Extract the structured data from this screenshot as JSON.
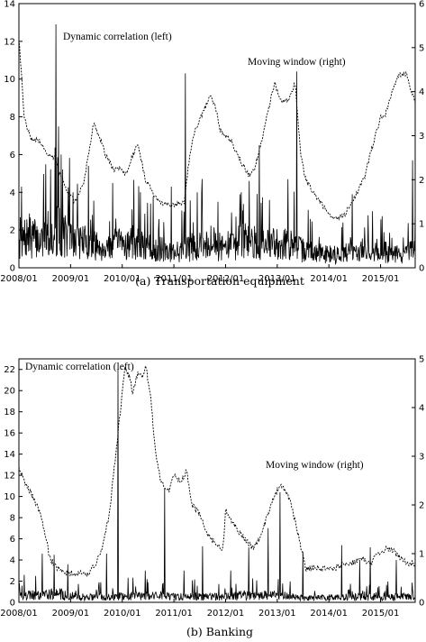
{
  "chart_data": [
    {
      "type": "line",
      "caption": "(a) Transportation equipment",
      "x_ticks": [
        "2008/01",
        "2009/01",
        "2010/01",
        "2011/01",
        "2012/01",
        "2013/01",
        "2014/01",
        "2015/01"
      ],
      "x_range": [
        2008.0,
        2015.67
      ],
      "left_axis": {
        "ticks": [
          0,
          2,
          4,
          6,
          8,
          10,
          12,
          14
        ],
        "range": [
          0,
          14
        ]
      },
      "right_axis": {
        "ticks": [
          0,
          1,
          2,
          3,
          4,
          5,
          6
        ],
        "range": [
          0,
          6
        ]
      },
      "annotations": [
        "Dynamic correlation (left)",
        "Moving window (right)"
      ],
      "series": [
        {
          "axis": "left",
          "style": "solid",
          "base": [
            [
              2008.0,
              1.5
            ],
            [
              2008.2,
              2.0
            ],
            [
              2008.4,
              1.7
            ],
            [
              2008.6,
              1.9
            ],
            [
              2008.75,
              2.4
            ],
            [
              2008.9,
              2.0
            ],
            [
              2009.0,
              1.8
            ],
            [
              2009.2,
              1.7
            ],
            [
              2009.4,
              1.4
            ],
            [
              2009.6,
              1.3
            ],
            [
              2009.8,
              1.4
            ],
            [
              2010.0,
              1.5
            ],
            [
              2010.2,
              1.6
            ],
            [
              2010.4,
              1.3
            ],
            [
              2010.6,
              1.2
            ],
            [
              2010.8,
              1.1
            ],
            [
              2011.0,
              1.0
            ],
            [
              2011.2,
              1.1
            ],
            [
              2011.4,
              1.4
            ],
            [
              2011.6,
              1.5
            ],
            [
              2011.8,
              1.3
            ],
            [
              2012.0,
              1.3
            ],
            [
              2012.2,
              1.5
            ],
            [
              2012.4,
              1.7
            ],
            [
              2012.6,
              1.5
            ],
            [
              2012.8,
              1.4
            ],
            [
              2013.0,
              1.6
            ],
            [
              2013.2,
              1.5
            ],
            [
              2013.4,
              1.2
            ],
            [
              2013.6,
              1.0
            ],
            [
              2013.8,
              0.9
            ],
            [
              2014.0,
              0.9
            ],
            [
              2014.2,
              0.8
            ],
            [
              2014.4,
              1.0
            ],
            [
              2014.6,
              1.1
            ],
            [
              2014.8,
              1.0
            ],
            [
              2015.0,
              1.1
            ],
            [
              2015.2,
              0.9
            ],
            [
              2015.4,
              0.8
            ],
            [
              2015.6,
              1.0
            ],
            [
              2015.67,
              1.1
            ]
          ],
          "spikes": [
            [
              2008.72,
              12.9
            ],
            [
              2011.22,
              10.3
            ],
            [
              2013.38,
              10.4
            ],
            [
              2012.65,
              6.5
            ],
            [
              2008.82,
              6.0
            ],
            [
              2009.35,
              5.4
            ],
            [
              2015.62,
              5.7
            ],
            [
              2010.95,
              4.3
            ],
            [
              2008.05,
              4.3
            ],
            [
              2009.05,
              4.0
            ],
            [
              2012.3,
              4.0
            ],
            [
              2014.45,
              3.9
            ],
            [
              2010.55,
              3.4
            ],
            [
              2011.85,
              3.5
            ],
            [
              2012.85,
              3.6
            ]
          ]
        },
        {
          "axis": "right",
          "style": "dotted",
          "points": [
            [
              2008.0,
              5.2
            ],
            [
              2008.05,
              4.4
            ],
            [
              2008.1,
              3.4
            ],
            [
              2008.25,
              2.9
            ],
            [
              2008.4,
              2.9
            ],
            [
              2008.55,
              2.6
            ],
            [
              2008.7,
              2.5
            ],
            [
              2008.8,
              2.1
            ],
            [
              2009.0,
              1.6
            ],
            [
              2009.1,
              1.5
            ],
            [
              2009.25,
              1.9
            ],
            [
              2009.35,
              2.6
            ],
            [
              2009.45,
              3.3
            ],
            [
              2009.55,
              3.0
            ],
            [
              2009.7,
              2.5
            ],
            [
              2009.85,
              2.2
            ],
            [
              2009.95,
              2.3
            ],
            [
              2010.05,
              2.1
            ],
            [
              2010.15,
              2.4
            ],
            [
              2010.3,
              2.8
            ],
            [
              2010.45,
              2.0
            ],
            [
              2010.55,
              1.8
            ],
            [
              2010.7,
              1.5
            ],
            [
              2011.0,
              1.4
            ],
            [
              2011.2,
              1.5
            ],
            [
              2011.3,
              2.5
            ],
            [
              2011.4,
              3.1
            ],
            [
              2011.55,
              3.5
            ],
            [
              2011.7,
              3.9
            ],
            [
              2011.8,
              3.7
            ],
            [
              2011.9,
              3.1
            ],
            [
              2012.1,
              2.9
            ],
            [
              2012.3,
              2.4
            ],
            [
              2012.45,
              2.1
            ],
            [
              2012.55,
              2.2
            ],
            [
              2012.7,
              2.9
            ],
            [
              2012.85,
              3.7
            ],
            [
              2012.95,
              4.2
            ],
            [
              2013.05,
              3.8
            ],
            [
              2013.2,
              3.8
            ],
            [
              2013.35,
              4.2
            ],
            [
              2013.45,
              2.6
            ],
            [
              2013.55,
              2.0
            ],
            [
              2013.75,
              1.6
            ],
            [
              2013.95,
              1.3
            ],
            [
              2014.1,
              1.1
            ],
            [
              2014.3,
              1.2
            ],
            [
              2014.5,
              1.6
            ],
            [
              2014.7,
              2.1
            ],
            [
              2014.85,
              2.8
            ],
            [
              2015.0,
              3.4
            ],
            [
              2015.1,
              3.5
            ],
            [
              2015.2,
              3.9
            ],
            [
              2015.35,
              4.4
            ],
            [
              2015.5,
              4.4
            ],
            [
              2015.6,
              4.0
            ],
            [
              2015.67,
              3.8
            ]
          ]
        }
      ]
    },
    {
      "type": "line",
      "caption": "(b) Banking",
      "x_ticks": [
        "2008/01",
        "2009/01",
        "2010/01",
        "2011/01",
        "2012/01",
        "2013/01",
        "2014/01",
        "2015/01"
      ],
      "x_range": [
        2008.0,
        2015.67
      ],
      "left_axis": {
        "ticks": [
          0,
          2,
          4,
          6,
          8,
          10,
          12,
          14,
          16,
          18,
          20,
          22
        ],
        "range": [
          0,
          23
        ]
      },
      "right_axis": {
        "ticks": [
          0,
          1,
          2,
          3,
          4,
          5
        ],
        "range": [
          0,
          5
        ]
      },
      "annotations": [
        "Dynamic correlation (left)",
        "Moving window (right)"
      ],
      "series": [
        {
          "axis": "left",
          "style": "solid",
          "base": [
            [
              2008.0,
              0.6
            ],
            [
              2008.2,
              0.8
            ],
            [
              2008.4,
              0.9
            ],
            [
              2008.6,
              1.0
            ],
            [
              2008.8,
              0.9
            ],
            [
              2009.0,
              0.7
            ],
            [
              2009.2,
              0.6
            ],
            [
              2009.4,
              0.6
            ],
            [
              2009.6,
              0.6
            ],
            [
              2009.8,
              0.7
            ],
            [
              2010.0,
              0.7
            ],
            [
              2010.2,
              0.8
            ],
            [
              2010.4,
              0.8
            ],
            [
              2010.6,
              0.7
            ],
            [
              2010.8,
              0.7
            ],
            [
              2011.0,
              0.6
            ],
            [
              2011.2,
              0.6
            ],
            [
              2011.4,
              0.7
            ],
            [
              2011.6,
              0.6
            ],
            [
              2011.8,
              0.6
            ],
            [
              2012.0,
              0.6
            ],
            [
              2012.2,
              0.7
            ],
            [
              2012.4,
              0.8
            ],
            [
              2012.6,
              0.7
            ],
            [
              2012.8,
              0.8
            ],
            [
              2013.0,
              0.8
            ],
            [
              2013.2,
              0.7
            ],
            [
              2013.4,
              0.5
            ],
            [
              2013.6,
              0.5
            ],
            [
              2013.8,
              0.5
            ],
            [
              2014.0,
              0.5
            ],
            [
              2014.2,
              0.5
            ],
            [
              2014.4,
              0.6
            ],
            [
              2014.6,
              0.6
            ],
            [
              2014.8,
              0.6
            ],
            [
              2015.0,
              0.7
            ],
            [
              2015.2,
              0.6
            ],
            [
              2015.4,
              0.6
            ],
            [
              2015.67,
              0.7
            ]
          ],
          "spikes": [
            [
              2009.92,
              22.0
            ],
            [
              2010.82,
              10.8
            ],
            [
              2013.05,
              10.4
            ],
            [
              2012.82,
              7.0
            ],
            [
              2011.55,
              5.3
            ],
            [
              2012.45,
              5.2
            ],
            [
              2008.68,
              4.5
            ],
            [
              2008.45,
              4.6
            ],
            [
              2014.8,
              5.2
            ],
            [
              2009.7,
              4.6
            ],
            [
              2014.25,
              5.4
            ],
            [
              2008.95,
              3.6
            ],
            [
              2013.5,
              4.8
            ],
            [
              2015.3,
              4.0
            ],
            [
              2010.45,
              3.0
            ],
            [
              2012.1,
              3.0
            ],
            [
              2014.6,
              4.0
            ],
            [
              2008.1,
              2.6
            ],
            [
              2011.2,
              3.0
            ]
          ]
        },
        {
          "axis": "right",
          "style": "dotted",
          "points": [
            [
              2008.0,
              2.8
            ],
            [
              2008.1,
              2.5
            ],
            [
              2008.3,
              2.1
            ],
            [
              2008.45,
              1.7
            ],
            [
              2008.6,
              0.9
            ],
            [
              2008.75,
              0.7
            ],
            [
              2008.95,
              0.6
            ],
            [
              2009.2,
              0.6
            ],
            [
              2009.35,
              0.6
            ],
            [
              2009.5,
              0.8
            ],
            [
              2009.6,
              1.1
            ],
            [
              2009.75,
              1.8
            ],
            [
              2009.85,
              2.8
            ],
            [
              2009.95,
              3.8
            ],
            [
              2010.05,
              4.8
            ],
            [
              2010.15,
              4.6
            ],
            [
              2010.2,
              4.3
            ],
            [
              2010.3,
              4.7
            ],
            [
              2010.4,
              4.6
            ],
            [
              2010.45,
              4.9
            ],
            [
              2010.55,
              4.2
            ],
            [
              2010.65,
              3.0
            ],
            [
              2010.75,
              2.5
            ],
            [
              2010.9,
              2.3
            ],
            [
              2011.0,
              2.6
            ],
            [
              2011.15,
              2.5
            ],
            [
              2011.25,
              2.7
            ],
            [
              2011.35,
              2.0
            ],
            [
              2011.5,
              1.8
            ],
            [
              2011.65,
              1.4
            ],
            [
              2011.8,
              1.2
            ],
            [
              2011.95,
              1.1
            ],
            [
              2012.0,
              1.9
            ],
            [
              2012.15,
              1.6
            ],
            [
              2012.3,
              1.4
            ],
            [
              2012.45,
              1.2
            ],
            [
              2012.55,
              1.1
            ],
            [
              2012.7,
              1.4
            ],
            [
              2012.9,
              2.1
            ],
            [
              2013.0,
              2.3
            ],
            [
              2013.1,
              2.4
            ],
            [
              2013.25,
              2.1
            ],
            [
              2013.4,
              1.4
            ],
            [
              2013.55,
              0.7
            ],
            [
              2013.75,
              0.7
            ],
            [
              2013.9,
              0.7
            ],
            [
              2014.1,
              0.7
            ],
            [
              2014.3,
              0.8
            ],
            [
              2014.45,
              0.8
            ],
            [
              2014.65,
              0.9
            ],
            [
              2014.8,
              0.8
            ],
            [
              2014.95,
              1.0
            ],
            [
              2015.1,
              1.1
            ],
            [
              2015.2,
              1.1
            ],
            [
              2015.4,
              0.9
            ],
            [
              2015.55,
              0.8
            ],
            [
              2015.67,
              0.8
            ]
          ]
        }
      ]
    }
  ]
}
